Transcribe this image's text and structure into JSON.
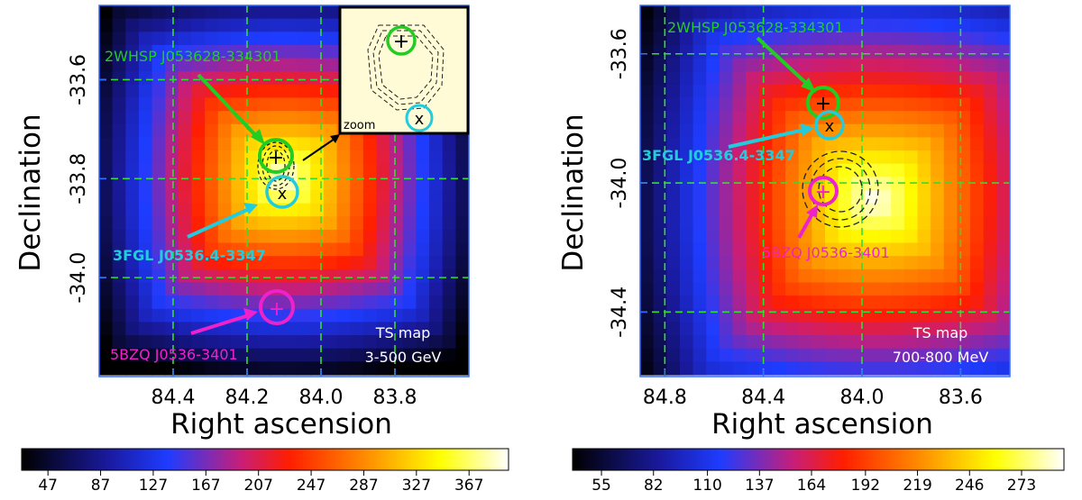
{
  "chart_data": [
    {
      "type": "heatmap",
      "xlabel": "Right ascension",
      "ylabel": "Declination",
      "x_ticks": [
        "84.4",
        "84.2",
        "84.0",
        "83.8"
      ],
      "y_ticks": [
        "-33.6",
        "-33.8",
        "-34.0"
      ],
      "xlim": [
        84.6,
        83.6
      ],
      "ylim": [
        -34.2,
        -33.45
      ],
      "panel_text": [
        "TS map",
        "3-500 GeV"
      ],
      "colorbar_ticks": [
        "47",
        "87",
        "127",
        "167",
        "207",
        "247",
        "287",
        "327",
        "367"
      ],
      "colorbar_range": [
        27,
        397
      ],
      "peak": {
        "ra": 84.1,
        "dec": -33.8,
        "ts": 397
      },
      "sources": [
        {
          "label": "2WHSP J053628-334301",
          "ra": 84.12,
          "dec": -33.72,
          "marker": "+",
          "color": "#22cc22"
        },
        {
          "label": "3FGL J0536.4-3347",
          "ra": 84.09,
          "dec": -33.79,
          "marker": "x",
          "color": "#22ccdd"
        },
        {
          "label": "5BZQ J0536-3401",
          "ra": 84.09,
          "dec": -34.02,
          "marker": "+",
          "color": "#ee22cc"
        }
      ],
      "inset_label": "zoom"
    },
    {
      "type": "heatmap",
      "xlabel": "Right ascension",
      "ylabel": "Declination",
      "x_ticks": [
        "84.8",
        "84.4",
        "84.0",
        "83.6"
      ],
      "y_ticks": [
        "-33.6",
        "-34.0",
        "-34.4"
      ],
      "xlim": [
        84.9,
        83.4
      ],
      "ylim": [
        -34.6,
        -33.45
      ],
      "panel_text": [
        "TS map",
        "700-800 MeV"
      ],
      "colorbar_ticks": [
        "55",
        "82",
        "110",
        "137",
        "164",
        "192",
        "219",
        "246",
        "273"
      ],
      "colorbar_range": [
        40,
        295
      ],
      "peak": {
        "ra": 83.95,
        "dec": -34.05,
        "ts": 295
      },
      "sources": [
        {
          "label": "2WHSP J053628-334301",
          "ra": 84.12,
          "dec": -33.72,
          "marker": "+",
          "color": "#22cc22"
        },
        {
          "label": "3FGL J0536.4-3347",
          "ra": 84.09,
          "dec": -33.79,
          "marker": "x",
          "color": "#22ccdd"
        },
        {
          "label": "5BZQ J0536-3401",
          "ra": 84.09,
          "dec": -34.02,
          "marker": "+",
          "color": "#ee22cc"
        }
      ]
    }
  ]
}
